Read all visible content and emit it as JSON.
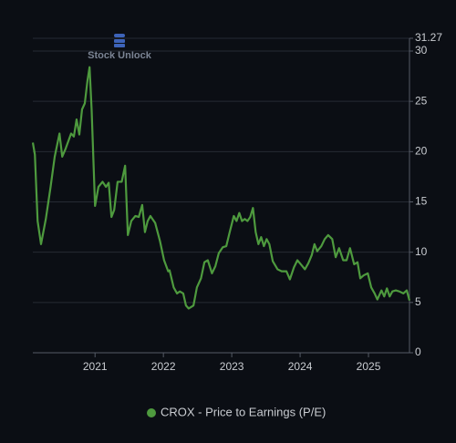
{
  "chart_data": {
    "type": "line",
    "watermark": "Stock Unlock",
    "x": [
      2020.09,
      2020.12,
      2020.16,
      2020.21,
      2020.28,
      2020.35,
      2020.41,
      2020.48,
      2020.52,
      2020.57,
      2020.65,
      2020.69,
      2020.73,
      2020.77,
      2020.81,
      2020.85,
      2020.89,
      2020.92,
      2020.95,
      2021.0,
      2021.05,
      2021.11,
      2021.16,
      2021.2,
      2021.24,
      2021.28,
      2021.33,
      2021.39,
      2021.44,
      2021.48,
      2021.53,
      2021.59,
      2021.64,
      2021.69,
      2021.73,
      2021.77,
      2021.81,
      2021.88,
      2021.95,
      2022.01,
      2022.07,
      2022.09,
      2022.15,
      2022.2,
      2022.24,
      2022.29,
      2022.33,
      2022.37,
      2022.44,
      2022.49,
      2022.55,
      2022.6,
      2022.65,
      2022.71,
      2022.76,
      2022.81,
      2022.87,
      2022.92,
      2022.97,
      2023.03,
      2023.07,
      2023.11,
      2023.15,
      2023.19,
      2023.23,
      2023.27,
      2023.31,
      2023.35,
      2023.39,
      2023.43,
      2023.47,
      2023.51,
      2023.55,
      2023.6,
      2023.67,
      2023.73,
      2023.8,
      2023.85,
      2023.91,
      2023.96,
      2024.01,
      2024.07,
      2024.12,
      2024.17,
      2024.21,
      2024.25,
      2024.31,
      2024.36,
      2024.41,
      2024.47,
      2024.52,
      2024.57,
      2024.63,
      2024.68,
      2024.73,
      2024.79,
      2024.84,
      2024.88,
      2024.93,
      2024.99,
      2025.04,
      2025.09,
      2025.13,
      2025.19,
      2025.23,
      2025.27,
      2025.31,
      2025.35,
      2025.4,
      2025.45,
      2025.51,
      2025.56,
      2025.6
    ],
    "series": [
      {
        "name": "CROX - Price to Earnings (P/E)",
        "color": "#4e9a3e",
        "values": [
          20.9,
          19.7,
          13.1,
          10.8,
          13.3,
          16.5,
          19.5,
          21.8,
          19.5,
          20.3,
          21.8,
          21.5,
          23.2,
          21.7,
          24.2,
          24.8,
          27.1,
          28.4,
          24.2,
          14.6,
          16.5,
          17.0,
          16.5,
          16.9,
          13.5,
          14.2,
          17.0,
          17.0,
          18.6,
          11.7,
          13.1,
          13.6,
          13.5,
          14.7,
          12.0,
          13.1,
          13.6,
          12.9,
          11.1,
          9.2,
          8.1,
          8.2,
          6.5,
          5.9,
          6.1,
          5.9,
          4.7,
          4.4,
          4.7,
          6.5,
          7.4,
          9.0,
          9.2,
          7.9,
          8.6,
          9.9,
          10.5,
          10.6,
          12.0,
          13.6,
          13.1,
          13.9,
          13.1,
          13.3,
          13.1,
          13.5,
          14.4,
          12.0,
          10.8,
          11.5,
          10.6,
          11.3,
          10.8,
          9.1,
          8.3,
          8.1,
          8.1,
          7.3,
          8.5,
          9.2,
          8.8,
          8.3,
          8.9,
          9.7,
          10.8,
          10.1,
          10.6,
          11.3,
          11.7,
          11.3,
          9.5,
          10.4,
          9.2,
          9.2,
          10.4,
          8.8,
          9.0,
          7.4,
          7.7,
          7.9,
          6.5,
          5.9,
          5.3,
          6.2,
          5.6,
          6.4,
          5.6,
          6.1,
          6.2,
          6.1,
          5.9,
          6.2,
          5.2
        ]
      }
    ],
    "xlim": [
      2020.09,
      2025.6
    ],
    "xticks": [
      2021,
      2022,
      2023,
      2024,
      2025
    ],
    "ylim": [
      0,
      31.27
    ],
    "yticks": [
      0,
      5,
      10,
      15,
      20,
      25,
      30,
      31.27
    ],
    "grid": true,
    "legend": "bottom"
  }
}
